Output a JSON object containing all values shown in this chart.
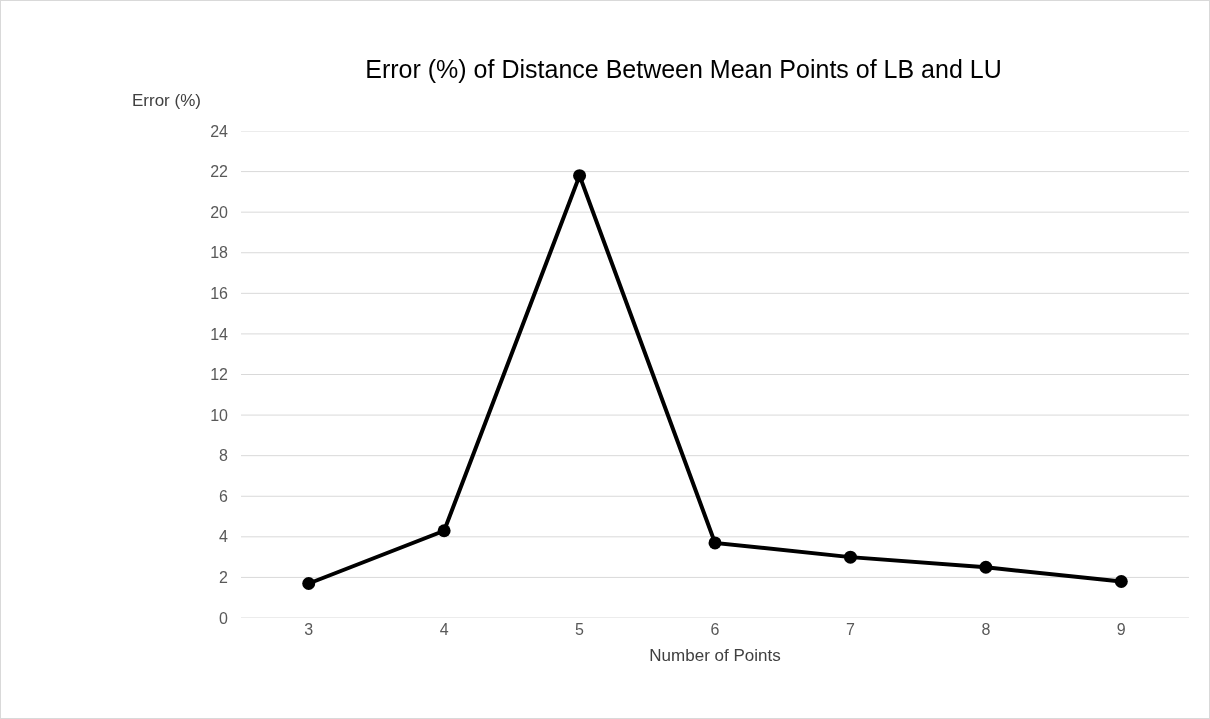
{
  "chart_data": {
    "type": "line",
    "title": "Error (%) of Distance Between Mean Points of LB and LU",
    "xlabel": "Number of Points",
    "ylabel": "Error (%)",
    "categories": [
      "3",
      "4",
      "5",
      "6",
      "7",
      "8",
      "9"
    ],
    "series": [
      {
        "color": "#000000",
        "values": [
          1.7,
          4.3,
          21.8,
          3.7,
          3.0,
          2.5,
          1.8
        ]
      }
    ],
    "ylim": [
      0,
      24
    ],
    "yticks": [
      0,
      2,
      4,
      6,
      8,
      10,
      12,
      14,
      16,
      18,
      20,
      22,
      24
    ],
    "grid": "y",
    "marker": "circle",
    "line_style": "solid"
  }
}
